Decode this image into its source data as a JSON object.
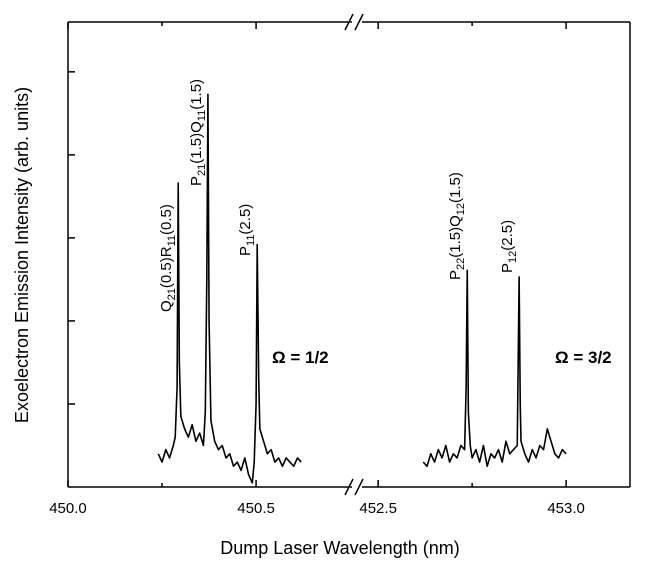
{
  "chart_data": {
    "type": "line",
    "x_label": "Dump Laser Wavelength (nm)",
    "y_label": "Exoelectron Emission Intensity (arb. units)",
    "ylim": [
      0,
      5.6
    ],
    "yticks": [
      1,
      2,
      3,
      4,
      5
    ],
    "ytick_labels": false,
    "axis_break": true,
    "x_segments": [
      {
        "xlim": [
          450.0,
          450.755
        ],
        "xticks": [
          {
            "value": 450.0,
            "label": "450.0"
          },
          450.5
        ],
        "xminor": [
          450.25
        ]
      },
      {
        "xlim": [
          452.457,
          453.17
        ],
        "xticks": [
          452.5,
          {
            "value": 453.0,
            "label": "453.0"
          }
        ],
        "xminor": [
          452.75
        ]
      }
    ],
    "series": [
      {
        "segment": 0,
        "color": "#000000",
        "x": [
          450.24,
          450.25,
          450.26,
          450.27,
          450.28,
          450.285,
          450.29,
          450.293,
          450.296,
          450.3,
          450.31,
          450.32,
          450.33,
          450.34,
          450.35,
          450.36,
          450.365,
          450.369,
          450.372,
          450.375,
          450.38,
          450.39,
          450.4,
          450.41,
          450.42,
          450.43,
          450.44,
          450.45,
          450.46,
          450.47,
          450.48,
          450.49,
          450.495,
          450.5,
          450.503,
          450.507,
          450.51,
          450.52,
          450.53,
          450.54,
          450.55,
          450.56,
          450.57,
          450.58,
          450.59,
          450.6,
          450.61,
          450.62
        ],
        "values": [
          0.4,
          0.3,
          0.45,
          0.35,
          0.5,
          0.6,
          1.2,
          3.66,
          1.5,
          0.85,
          0.7,
          0.6,
          0.75,
          0.55,
          0.65,
          0.5,
          0.9,
          2.5,
          4.73,
          2.0,
          0.8,
          0.55,
          0.45,
          0.5,
          0.35,
          0.4,
          0.25,
          0.3,
          0.2,
          0.35,
          0.15,
          0.05,
          0.3,
          1.0,
          2.92,
          1.3,
          0.7,
          0.55,
          0.4,
          0.45,
          0.3,
          0.35,
          0.25,
          0.35,
          0.3,
          0.25,
          0.35,
          0.3
        ]
      },
      {
        "segment": 1,
        "color": "#000000",
        "x": [
          452.62,
          452.63,
          452.64,
          452.65,
          452.66,
          452.67,
          452.68,
          452.69,
          452.7,
          452.71,
          452.72,
          452.73,
          452.734,
          452.737,
          452.74,
          452.745,
          452.75,
          452.76,
          452.77,
          452.78,
          452.79,
          452.8,
          452.81,
          452.82,
          452.83,
          452.84,
          452.85,
          452.86,
          452.87,
          452.872,
          452.875,
          452.878,
          452.88,
          452.89,
          452.9,
          452.91,
          452.92,
          452.93,
          452.94,
          452.95,
          452.96,
          452.97,
          452.98,
          452.99,
          453.0
        ],
        "values": [
          0.3,
          0.25,
          0.4,
          0.3,
          0.45,
          0.35,
          0.5,
          0.3,
          0.4,
          0.35,
          0.5,
          0.45,
          1.2,
          2.61,
          0.9,
          0.5,
          0.35,
          0.45,
          0.3,
          0.5,
          0.25,
          0.4,
          0.35,
          0.45,
          0.3,
          0.55,
          0.4,
          0.45,
          0.5,
          1.3,
          2.53,
          1.0,
          0.55,
          0.4,
          0.3,
          0.45,
          0.35,
          0.5,
          0.45,
          0.7,
          0.55,
          0.4,
          0.35,
          0.45,
          0.4
        ]
      }
    ],
    "annotations": [
      {
        "parts": [
          "Q",
          "21",
          "(0.5)R",
          "11",
          "(0.5)"
        ]
      },
      {
        "parts": [
          "P",
          "21",
          "(1.5)Q",
          "11",
          "(1.5)"
        ]
      },
      {
        "parts": [
          "P",
          "11",
          "(2.5)"
        ]
      },
      {
        "parts": [
          "P",
          "22",
          "(1.5)Q",
          "12",
          "(1.5)"
        ]
      },
      {
        "parts": [
          "P",
          "12",
          "(2.5)"
        ]
      }
    ],
    "labels": [
      "Ω = 1/2",
      "Ω = 3/2"
    ]
  }
}
